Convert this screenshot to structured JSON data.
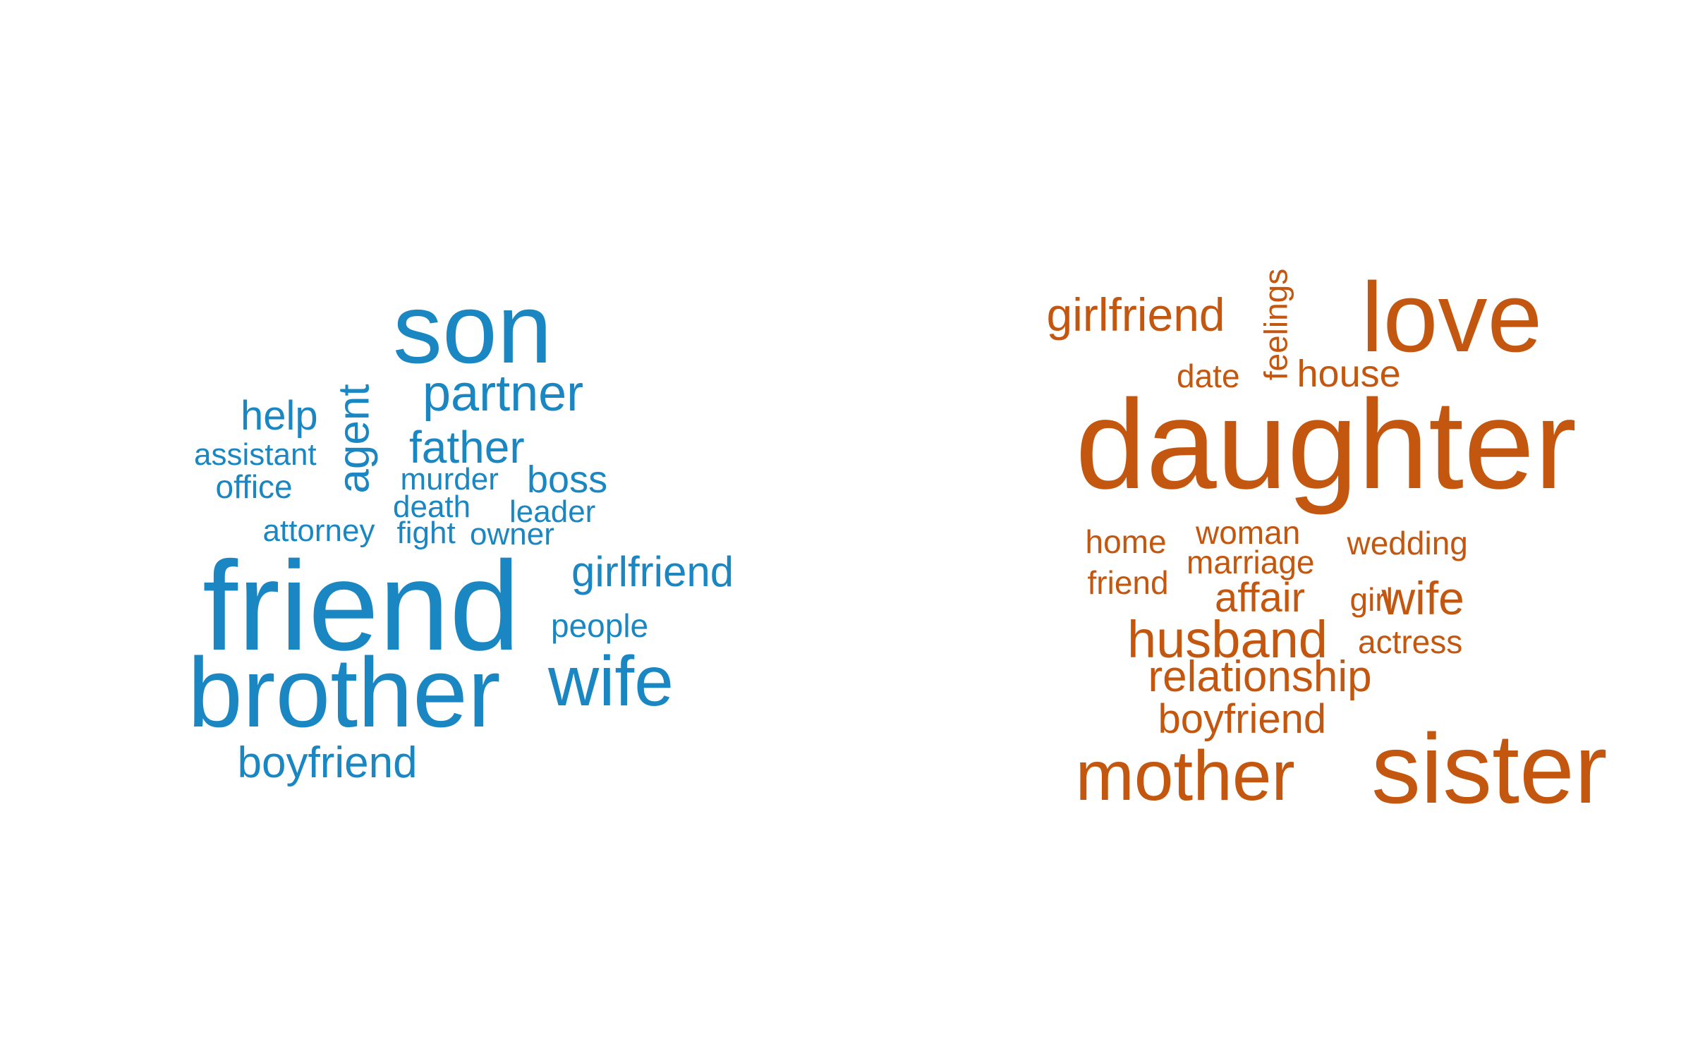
{
  "clouds": [
    {
      "color": "#1a87c2",
      "words": [
        {
          "text": "son"
        },
        {
          "text": "partner"
        },
        {
          "text": "help"
        },
        {
          "text": "agent",
          "rotated": true
        },
        {
          "text": "assistant"
        },
        {
          "text": "father"
        },
        {
          "text": "office"
        },
        {
          "text": "murder"
        },
        {
          "text": "boss"
        },
        {
          "text": "death"
        },
        {
          "text": "leader"
        },
        {
          "text": "attorney"
        },
        {
          "text": "fight"
        },
        {
          "text": "owner"
        },
        {
          "text": "girlfriend"
        },
        {
          "text": "friend"
        },
        {
          "text": "people"
        },
        {
          "text": "brother"
        },
        {
          "text": "wife"
        },
        {
          "text": "boyfriend"
        }
      ]
    },
    {
      "color": "#c4570f",
      "words": [
        {
          "text": "girlfriend"
        },
        {
          "text": "feelings",
          "rotated": true
        },
        {
          "text": "love"
        },
        {
          "text": "date"
        },
        {
          "text": "house"
        },
        {
          "text": "daughter"
        },
        {
          "text": "home"
        },
        {
          "text": "woman"
        },
        {
          "text": "wedding"
        },
        {
          "text": "marriage"
        },
        {
          "text": "friend"
        },
        {
          "text": "affair"
        },
        {
          "text": "girl"
        },
        {
          "text": "wife"
        },
        {
          "text": "husband"
        },
        {
          "text": "actress"
        },
        {
          "text": "relationship"
        },
        {
          "text": "boyfriend"
        },
        {
          "text": "mother"
        },
        {
          "text": "sister"
        }
      ]
    }
  ]
}
